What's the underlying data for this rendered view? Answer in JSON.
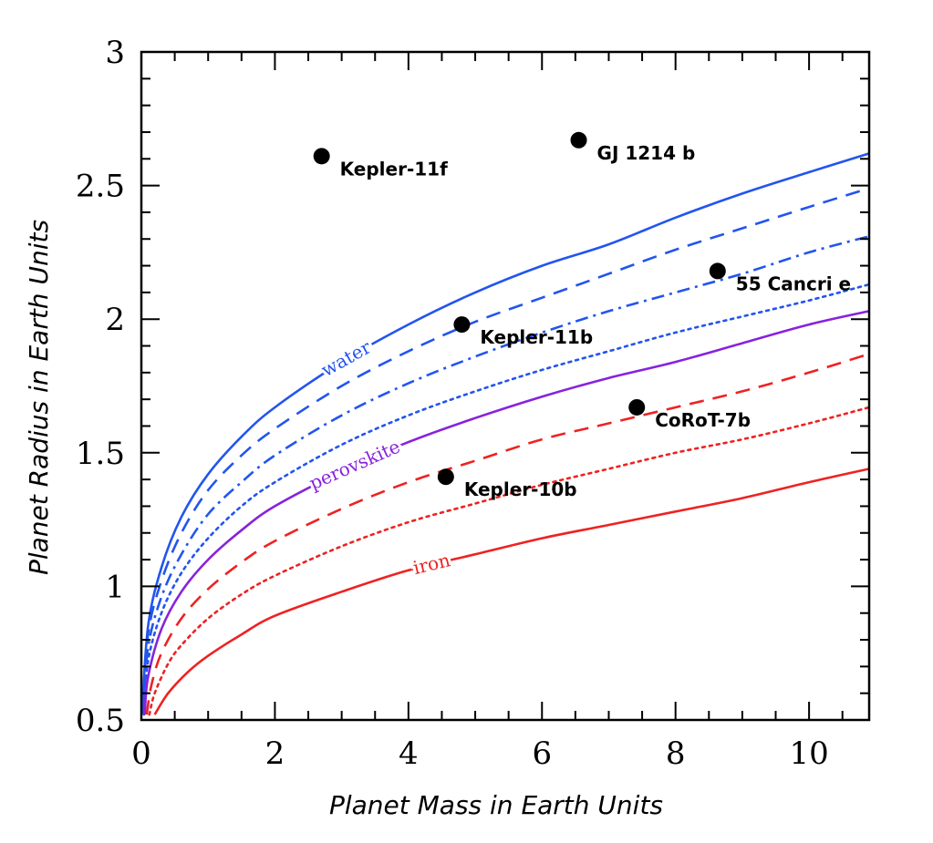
{
  "chart_data": {
    "type": "scatter",
    "title": "",
    "xlabel": "Planet Mass in Earth Units",
    "ylabel": "Planet Radius in Earth Units",
    "xlim": [
      0,
      10.9
    ],
    "ylim": [
      0.5,
      3
    ],
    "x_ticks": [
      "0",
      "2",
      "4",
      "6",
      "8",
      "10"
    ],
    "y_ticks": [
      "0.5",
      "1",
      "1.5",
      "2",
      "2.5",
      "3"
    ],
    "grid": false,
    "planets": [
      {
        "name": "Kepler-11f",
        "mass": 2.7,
        "radius": 2.61
      },
      {
        "name": "GJ 1214 b",
        "mass": 6.55,
        "radius": 2.67
      },
      {
        "name": "55 Cancri e",
        "mass": 8.63,
        "radius": 2.18
      },
      {
        "name": "Kepler-11b",
        "mass": 4.8,
        "radius": 1.98
      },
      {
        "name": "CoRoT-7b",
        "mass": 7.42,
        "radius": 1.67
      },
      {
        "name": "Kepler-10b",
        "mass": 4.56,
        "radius": 1.41
      }
    ],
    "curves": [
      {
        "label": "water",
        "color": "#2255ee",
        "style": "solid",
        "points": [
          [
            0.01,
            0.52
          ],
          [
            0.1,
            0.85
          ],
          [
            0.3,
            1.07
          ],
          [
            0.6,
            1.26
          ],
          [
            1,
            1.42
          ],
          [
            1.5,
            1.56
          ],
          [
            2,
            1.67
          ],
          [
            3,
            1.84
          ],
          [
            4,
            1.98
          ],
          [
            5,
            2.1
          ],
          [
            6,
            2.2
          ],
          [
            7,
            2.28
          ],
          [
            8,
            2.38
          ],
          [
            9,
            2.47
          ],
          [
            10,
            2.55
          ],
          [
            10.9,
            2.62
          ]
        ]
      },
      {
        "label": "",
        "color": "#2255ee",
        "style": "dashed",
        "points": [
          [
            0.02,
            0.52
          ],
          [
            0.1,
            0.82
          ],
          [
            0.3,
            1.02
          ],
          [
            0.6,
            1.2
          ],
          [
            1,
            1.36
          ],
          [
            1.5,
            1.49
          ],
          [
            2,
            1.59
          ],
          [
            3,
            1.75
          ],
          [
            4,
            1.88
          ],
          [
            5,
            1.99
          ],
          [
            6,
            2.08
          ],
          [
            7,
            2.17
          ],
          [
            8,
            2.26
          ],
          [
            9,
            2.34
          ],
          [
            10,
            2.42
          ],
          [
            10.9,
            2.49
          ]
        ]
      },
      {
        "label": "",
        "color": "#2255ee",
        "style": "dashdot",
        "points": [
          [
            0.03,
            0.52
          ],
          [
            0.1,
            0.77
          ],
          [
            0.3,
            0.96
          ],
          [
            0.6,
            1.12
          ],
          [
            1,
            1.27
          ],
          [
            1.5,
            1.39
          ],
          [
            2,
            1.49
          ],
          [
            3,
            1.64
          ],
          [
            4,
            1.76
          ],
          [
            5,
            1.86
          ],
          [
            6,
            1.95
          ],
          [
            7,
            2.03
          ],
          [
            8,
            2.1
          ],
          [
            9,
            2.17
          ],
          [
            10,
            2.25
          ],
          [
            10.9,
            2.31
          ]
        ]
      },
      {
        "label": "",
        "color": "#2255ee",
        "style": "dotted",
        "points": [
          [
            0.04,
            0.52
          ],
          [
            0.1,
            0.72
          ],
          [
            0.3,
            0.9
          ],
          [
            0.6,
            1.05
          ],
          [
            1,
            1.18
          ],
          [
            1.5,
            1.3
          ],
          [
            2,
            1.39
          ],
          [
            3,
            1.53
          ],
          [
            4,
            1.64
          ],
          [
            5,
            1.73
          ],
          [
            6,
            1.81
          ],
          [
            7,
            1.88
          ],
          [
            8,
            1.95
          ],
          [
            9,
            2.01
          ],
          [
            10,
            2.07
          ],
          [
            10.9,
            2.13
          ]
        ]
      },
      {
        "label": "perovskite",
        "color": "#8822dd",
        "style": "solid",
        "points": [
          [
            0.05,
            0.52
          ],
          [
            0.1,
            0.66
          ],
          [
            0.3,
            0.84
          ],
          [
            0.6,
            0.98
          ],
          [
            1,
            1.1
          ],
          [
            1.5,
            1.21
          ],
          [
            2,
            1.3
          ],
          [
            3,
            1.43
          ],
          [
            4,
            1.54
          ],
          [
            5,
            1.63
          ],
          [
            6,
            1.71
          ],
          [
            7,
            1.78
          ],
          [
            8,
            1.84
          ],
          [
            9,
            1.91
          ],
          [
            10,
            1.98
          ],
          [
            10.9,
            2.03
          ]
        ]
      },
      {
        "label": "",
        "color": "#ee2222",
        "style": "dashed",
        "points": [
          [
            0.08,
            0.52
          ],
          [
            0.15,
            0.63
          ],
          [
            0.3,
            0.75
          ],
          [
            0.6,
            0.88
          ],
          [
            1,
            0.99
          ],
          [
            1.5,
            1.09
          ],
          [
            2,
            1.17
          ],
          [
            3,
            1.29
          ],
          [
            4,
            1.39
          ],
          [
            5,
            1.47
          ],
          [
            6,
            1.55
          ],
          [
            7,
            1.61
          ],
          [
            8,
            1.67
          ],
          [
            9,
            1.73
          ],
          [
            10,
            1.8
          ],
          [
            10.9,
            1.87
          ]
        ]
      },
      {
        "label": "",
        "color": "#ee2222",
        "style": "dotted",
        "points": [
          [
            0.12,
            0.52
          ],
          [
            0.2,
            0.6
          ],
          [
            0.4,
            0.71
          ],
          [
            0.6,
            0.78
          ],
          [
            1,
            0.88
          ],
          [
            1.5,
            0.97
          ],
          [
            2,
            1.04
          ],
          [
            3,
            1.15
          ],
          [
            4,
            1.24
          ],
          [
            5,
            1.31
          ],
          [
            6,
            1.38
          ],
          [
            7,
            1.44
          ],
          [
            8,
            1.5
          ],
          [
            9,
            1.55
          ],
          [
            10,
            1.61
          ],
          [
            10.9,
            1.67
          ]
        ]
      },
      {
        "label": "iron",
        "color": "#ee2222",
        "style": "solid",
        "points": [
          [
            0.2,
            0.52
          ],
          [
            0.4,
            0.6
          ],
          [
            0.7,
            0.68
          ],
          [
            1,
            0.74
          ],
          [
            1.5,
            0.82
          ],
          [
            2,
            0.89
          ],
          [
            3,
            0.98
          ],
          [
            4,
            1.06
          ],
          [
            5,
            1.12
          ],
          [
            6,
            1.18
          ],
          [
            7,
            1.23
          ],
          [
            8,
            1.28
          ],
          [
            9,
            1.33
          ],
          [
            10,
            1.39
          ],
          [
            10.9,
            1.44
          ]
        ]
      }
    ]
  }
}
